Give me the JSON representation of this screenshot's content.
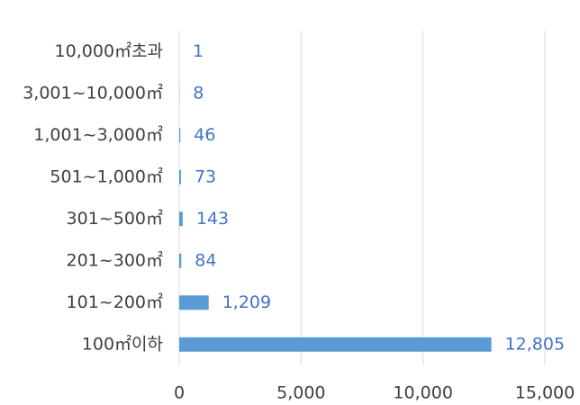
{
  "chart_data": {
    "type": "hbar",
    "categories": [
      "10,000㎡초과",
      "3,001~10,000㎡",
      "1,001~3,000㎡",
      "501~1,000㎡",
      "301~500㎡",
      "201~300㎡",
      "101~200㎡",
      "100㎡이하"
    ],
    "values": [
      1,
      8,
      46,
      73,
      143,
      84,
      1209,
      12805
    ],
    "value_labels": [
      "1",
      "8",
      "46",
      "73",
      "143",
      "84",
      "1,209",
      "12,805"
    ],
    "color": "#5b9bd5",
    "xlim": [
      0,
      15000
    ],
    "xticks": [
      0,
      {
        "value": 5000,
        "label": "5,000"
      },
      {
        "value": 10000,
        "label": "10,000"
      },
      {
        "value": 15000,
        "label": "15,000"
      }
    ],
    "grid": true
  }
}
